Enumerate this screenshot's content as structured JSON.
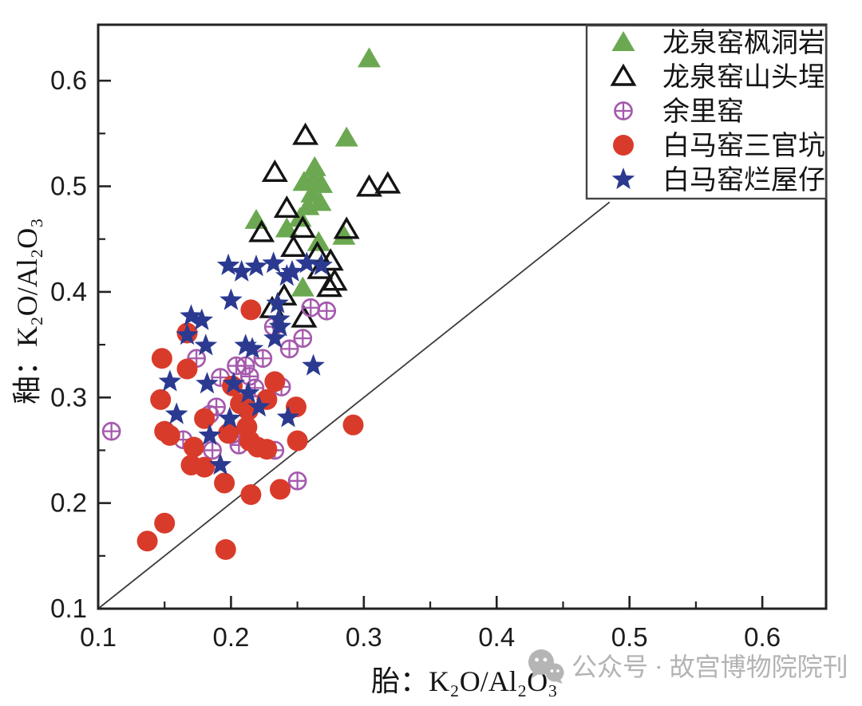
{
  "chart_data": {
    "type": "scatter",
    "title": "",
    "xlabel": "胎：K₂O/Al₂O₃",
    "ylabel": "釉：K₂O/Al₂O₃",
    "xlim": [
      0.1,
      0.648
    ],
    "ylim": [
      0.1,
      0.653
    ],
    "xticks": [
      0.1,
      0.2,
      0.3,
      0.4,
      0.5,
      0.6
    ],
    "xtick_labels": [
      "0.1",
      "0.2",
      "0.3",
      "0.4",
      "0.5",
      "0.6"
    ],
    "x_minor_ticks": [
      0.15,
      0.25,
      0.35,
      0.45,
      0.55
    ],
    "yticks": [
      0.1,
      0.2,
      0.3,
      0.4,
      0.5,
      0.6
    ],
    "ytick_labels": [
      "0.1",
      "0.2",
      "0.3",
      "0.4",
      "0.5",
      "0.6"
    ],
    "y_minor_ticks": [
      0.15,
      0.25,
      0.35,
      0.45,
      0.55
    ],
    "grid": false,
    "legend_position": "top-right",
    "reference_line": {
      "name": "y = x",
      "from": [
        0.1,
        0.1
      ],
      "to": [
        0.485,
        0.485
      ],
      "color": "#3a3a3a"
    },
    "series": [
      {
        "name": "龙泉窑枫洞岩",
        "marker": "triangle-filled",
        "color": "#6BA851",
        "points": [
          [
            0.304,
            0.621
          ],
          [
            0.287,
            0.546
          ],
          [
            0.263,
            0.518
          ],
          [
            0.262,
            0.508
          ],
          [
            0.255,
            0.504
          ],
          [
            0.268,
            0.502
          ],
          [
            0.261,
            0.493
          ],
          [
            0.267,
            0.485
          ],
          [
            0.258,
            0.481
          ],
          [
            0.252,
            0.47
          ],
          [
            0.219,
            0.468
          ],
          [
            0.242,
            0.46
          ],
          [
            0.285,
            0.453
          ],
          [
            0.266,
            0.447
          ],
          [
            0.254,
            0.404
          ]
        ]
      },
      {
        "name": "龙泉窑山头埕",
        "marker": "triangle-open",
        "color": "#141414",
        "points": [
          [
            0.256,
            0.548
          ],
          [
            0.233,
            0.513
          ],
          [
            0.318,
            0.502
          ],
          [
            0.304,
            0.499
          ],
          [
            0.242,
            0.479
          ],
          [
            0.254,
            0.46
          ],
          [
            0.287,
            0.459
          ],
          [
            0.223,
            0.456
          ],
          [
            0.247,
            0.442
          ],
          [
            0.265,
            0.436
          ],
          [
            0.275,
            0.429
          ],
          [
            0.267,
            0.421
          ],
          [
            0.278,
            0.41
          ],
          [
            0.274,
            0.404
          ],
          [
            0.24,
            0.396
          ],
          [
            0.231,
            0.384
          ],
          [
            0.255,
            0.375
          ]
        ]
      },
      {
        "name": "余里窑",
        "marker": "circle-plus",
        "color": "#A55AAD",
        "points": [
          [
            0.11,
            0.268
          ],
          [
            0.26,
            0.385
          ],
          [
            0.272,
            0.382
          ],
          [
            0.232,
            0.367
          ],
          [
            0.254,
            0.356
          ],
          [
            0.244,
            0.346
          ],
          [
            0.224,
            0.337
          ],
          [
            0.211,
            0.33
          ],
          [
            0.204,
            0.33
          ],
          [
            0.214,
            0.32
          ],
          [
            0.218,
            0.309
          ],
          [
            0.238,
            0.31
          ],
          [
            0.174,
            0.337
          ],
          [
            0.192,
            0.319
          ],
          [
            0.189,
            0.291
          ],
          [
            0.184,
            0.284
          ],
          [
            0.164,
            0.26
          ],
          [
            0.201,
            0.265
          ],
          [
            0.186,
            0.25
          ],
          [
            0.206,
            0.255
          ],
          [
            0.233,
            0.25
          ],
          [
            0.25,
            0.221
          ]
        ]
      },
      {
        "name": "白马窑三官坑",
        "marker": "circle-filled",
        "color": "#D93B2B",
        "points": [
          [
            0.215,
            0.383
          ],
          [
            0.167,
            0.361
          ],
          [
            0.148,
            0.337
          ],
          [
            0.167,
            0.327
          ],
          [
            0.147,
            0.298
          ],
          [
            0.201,
            0.311
          ],
          [
            0.233,
            0.315
          ],
          [
            0.227,
            0.298
          ],
          [
            0.207,
            0.294
          ],
          [
            0.213,
            0.288
          ],
          [
            0.249,
            0.291
          ],
          [
            0.18,
            0.28
          ],
          [
            0.212,
            0.272
          ],
          [
            0.15,
            0.268
          ],
          [
            0.154,
            0.264
          ],
          [
            0.198,
            0.266
          ],
          [
            0.214,
            0.259
          ],
          [
            0.25,
            0.259
          ],
          [
            0.172,
            0.253
          ],
          [
            0.22,
            0.253
          ],
          [
            0.227,
            0.251
          ],
          [
            0.17,
            0.236
          ],
          [
            0.18,
            0.234
          ],
          [
            0.195,
            0.219
          ],
          [
            0.292,
            0.274
          ],
          [
            0.215,
            0.208
          ],
          [
            0.237,
            0.213
          ],
          [
            0.15,
            0.181
          ],
          [
            0.137,
            0.164
          ],
          [
            0.196,
            0.156
          ]
        ]
      },
      {
        "name": "白马窑烂屋仔",
        "marker": "star-filled",
        "color": "#2B3A90",
        "points": [
          [
            0.198,
            0.425
          ],
          [
            0.208,
            0.419
          ],
          [
            0.219,
            0.424
          ],
          [
            0.232,
            0.427
          ],
          [
            0.242,
            0.415
          ],
          [
            0.246,
            0.419
          ],
          [
            0.257,
            0.427
          ],
          [
            0.268,
            0.425
          ],
          [
            0.2,
            0.392
          ],
          [
            0.235,
            0.389
          ],
          [
            0.17,
            0.377
          ],
          [
            0.178,
            0.373
          ],
          [
            0.236,
            0.374
          ],
          [
            0.237,
            0.367
          ],
          [
            0.167,
            0.359
          ],
          [
            0.233,
            0.356
          ],
          [
            0.181,
            0.349
          ],
          [
            0.216,
            0.346
          ],
          [
            0.211,
            0.349
          ],
          [
            0.262,
            0.33
          ],
          [
            0.154,
            0.315
          ],
          [
            0.182,
            0.313
          ],
          [
            0.202,
            0.313
          ],
          [
            0.213,
            0.304
          ],
          [
            0.221,
            0.291
          ],
          [
            0.159,
            0.284
          ],
          [
            0.199,
            0.28
          ],
          [
            0.243,
            0.281
          ],
          [
            0.184,
            0.264
          ],
          [
            0.192,
            0.236
          ]
        ]
      }
    ]
  },
  "watermark": {
    "text": "公众号 · 故宫博物院院刊",
    "icon": "wechat-chat-bubbles"
  }
}
